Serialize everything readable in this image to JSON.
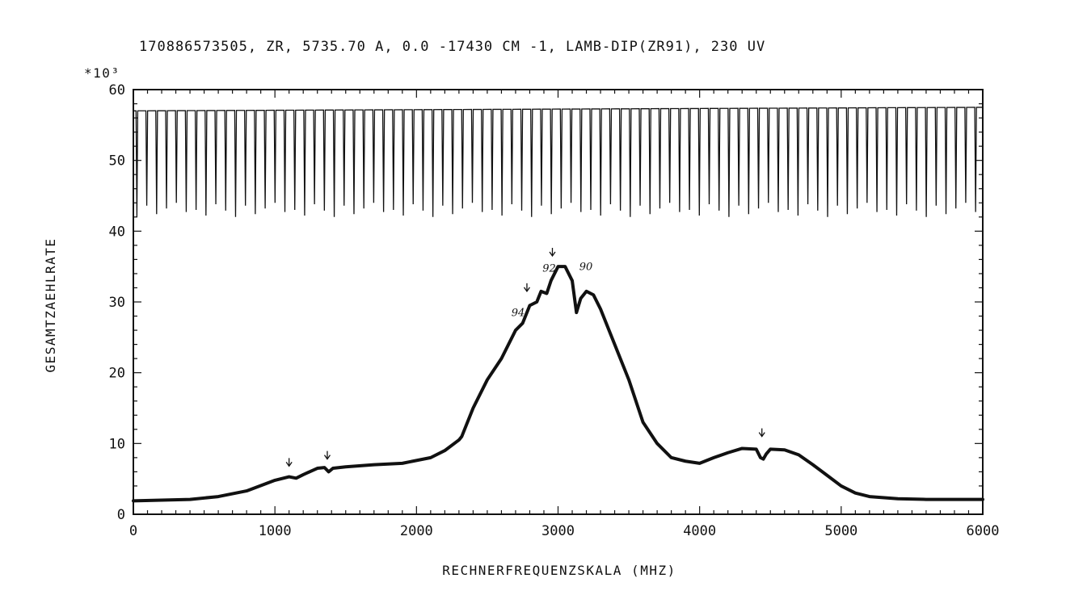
{
  "chart_data": {
    "type": "line",
    "title": "170886573505, ZR, 5735.70 A, 0.0 -17430 CM -1, LAMB-DIP(ZR91), 230 UV",
    "xlabel": "RECHNERFREQUENZSKALA (MHZ)",
    "ylabel": "GESAMTZAEHLRATE",
    "y_multiplier": "*10³",
    "xlim": [
      0,
      6000
    ],
    "ylim": [
      0,
      60
    ],
    "x_ticks": [
      0,
      1000,
      2000,
      3000,
      4000,
      5000,
      6000
    ],
    "y_ticks": [
      0,
      10,
      20,
      30,
      40,
      50,
      60
    ],
    "grid": false,
    "series": [
      {
        "role": "spectrum",
        "x": [
          0,
          200,
          400,
          600,
          800,
          1000,
          1100,
          1150,
          1200,
          1300,
          1350,
          1380,
          1410,
          1500,
          1700,
          1900,
          2100,
          2200,
          2300,
          2320,
          2400,
          2500,
          2600,
          2700,
          2750,
          2800,
          2850,
          2880,
          2920,
          2950,
          3000,
          3050,
          3100,
          3130,
          3160,
          3200,
          3250,
          3300,
          3400,
          3500,
          3600,
          3700,
          3800,
          3900,
          4000,
          4050,
          4100,
          4200,
          4300,
          4400,
          4430,
          4450,
          4470,
          4500,
          4600,
          4700,
          4800,
          4900,
          5000,
          5100,
          5200,
          5400,
          5600,
          5800,
          6000
        ],
        "y": [
          1.9,
          2.0,
          2.1,
          2.5,
          3.3,
          4.8,
          5.3,
          5.1,
          5.6,
          6.5,
          6.6,
          6.0,
          6.5,
          6.7,
          7.0,
          7.2,
          8.0,
          9.0,
          10.5,
          11.0,
          15.0,
          19.0,
          22.0,
          26.0,
          27.0,
          29.5,
          30.0,
          31.5,
          31.2,
          33.0,
          35.0,
          35.0,
          33.0,
          28.5,
          30.5,
          31.5,
          31.0,
          29.0,
          24.0,
          19.0,
          13.0,
          10.0,
          8.0,
          7.5,
          7.2,
          7.6,
          8.0,
          8.7,
          9.3,
          9.2,
          8.0,
          7.8,
          8.5,
          9.2,
          9.1,
          8.4,
          7.0,
          5.5,
          4.0,
          3.0,
          2.5,
          2.2,
          2.1,
          2.1,
          2.1
        ]
      },
      {
        "role": "reference-dips",
        "baseline": 57.0,
        "baseline_end": 57.5,
        "dip_spacing_mhz": 69.7,
        "dip_minima": [
          42,
          44
        ]
      }
    ],
    "annotations": [
      {
        "text": "94",
        "x": 2670,
        "y": 28
      },
      {
        "text": "92",
        "x": 2890,
        "y": 34.3
      },
      {
        "text": "90",
        "x": 3150,
        "y": 34.5
      }
    ],
    "markers": [
      {
        "label": "↓",
        "x": 1100,
        "y": 6.8
      },
      {
        "label": "↓",
        "x": 1370,
        "y": 7.8
      },
      {
        "label": "↓",
        "x": 2780,
        "y": 31.5
      },
      {
        "label": "↓",
        "x": 2960,
        "y": 36.5
      },
      {
        "label": "↓",
        "x": 4440,
        "y": 11.0
      }
    ]
  }
}
